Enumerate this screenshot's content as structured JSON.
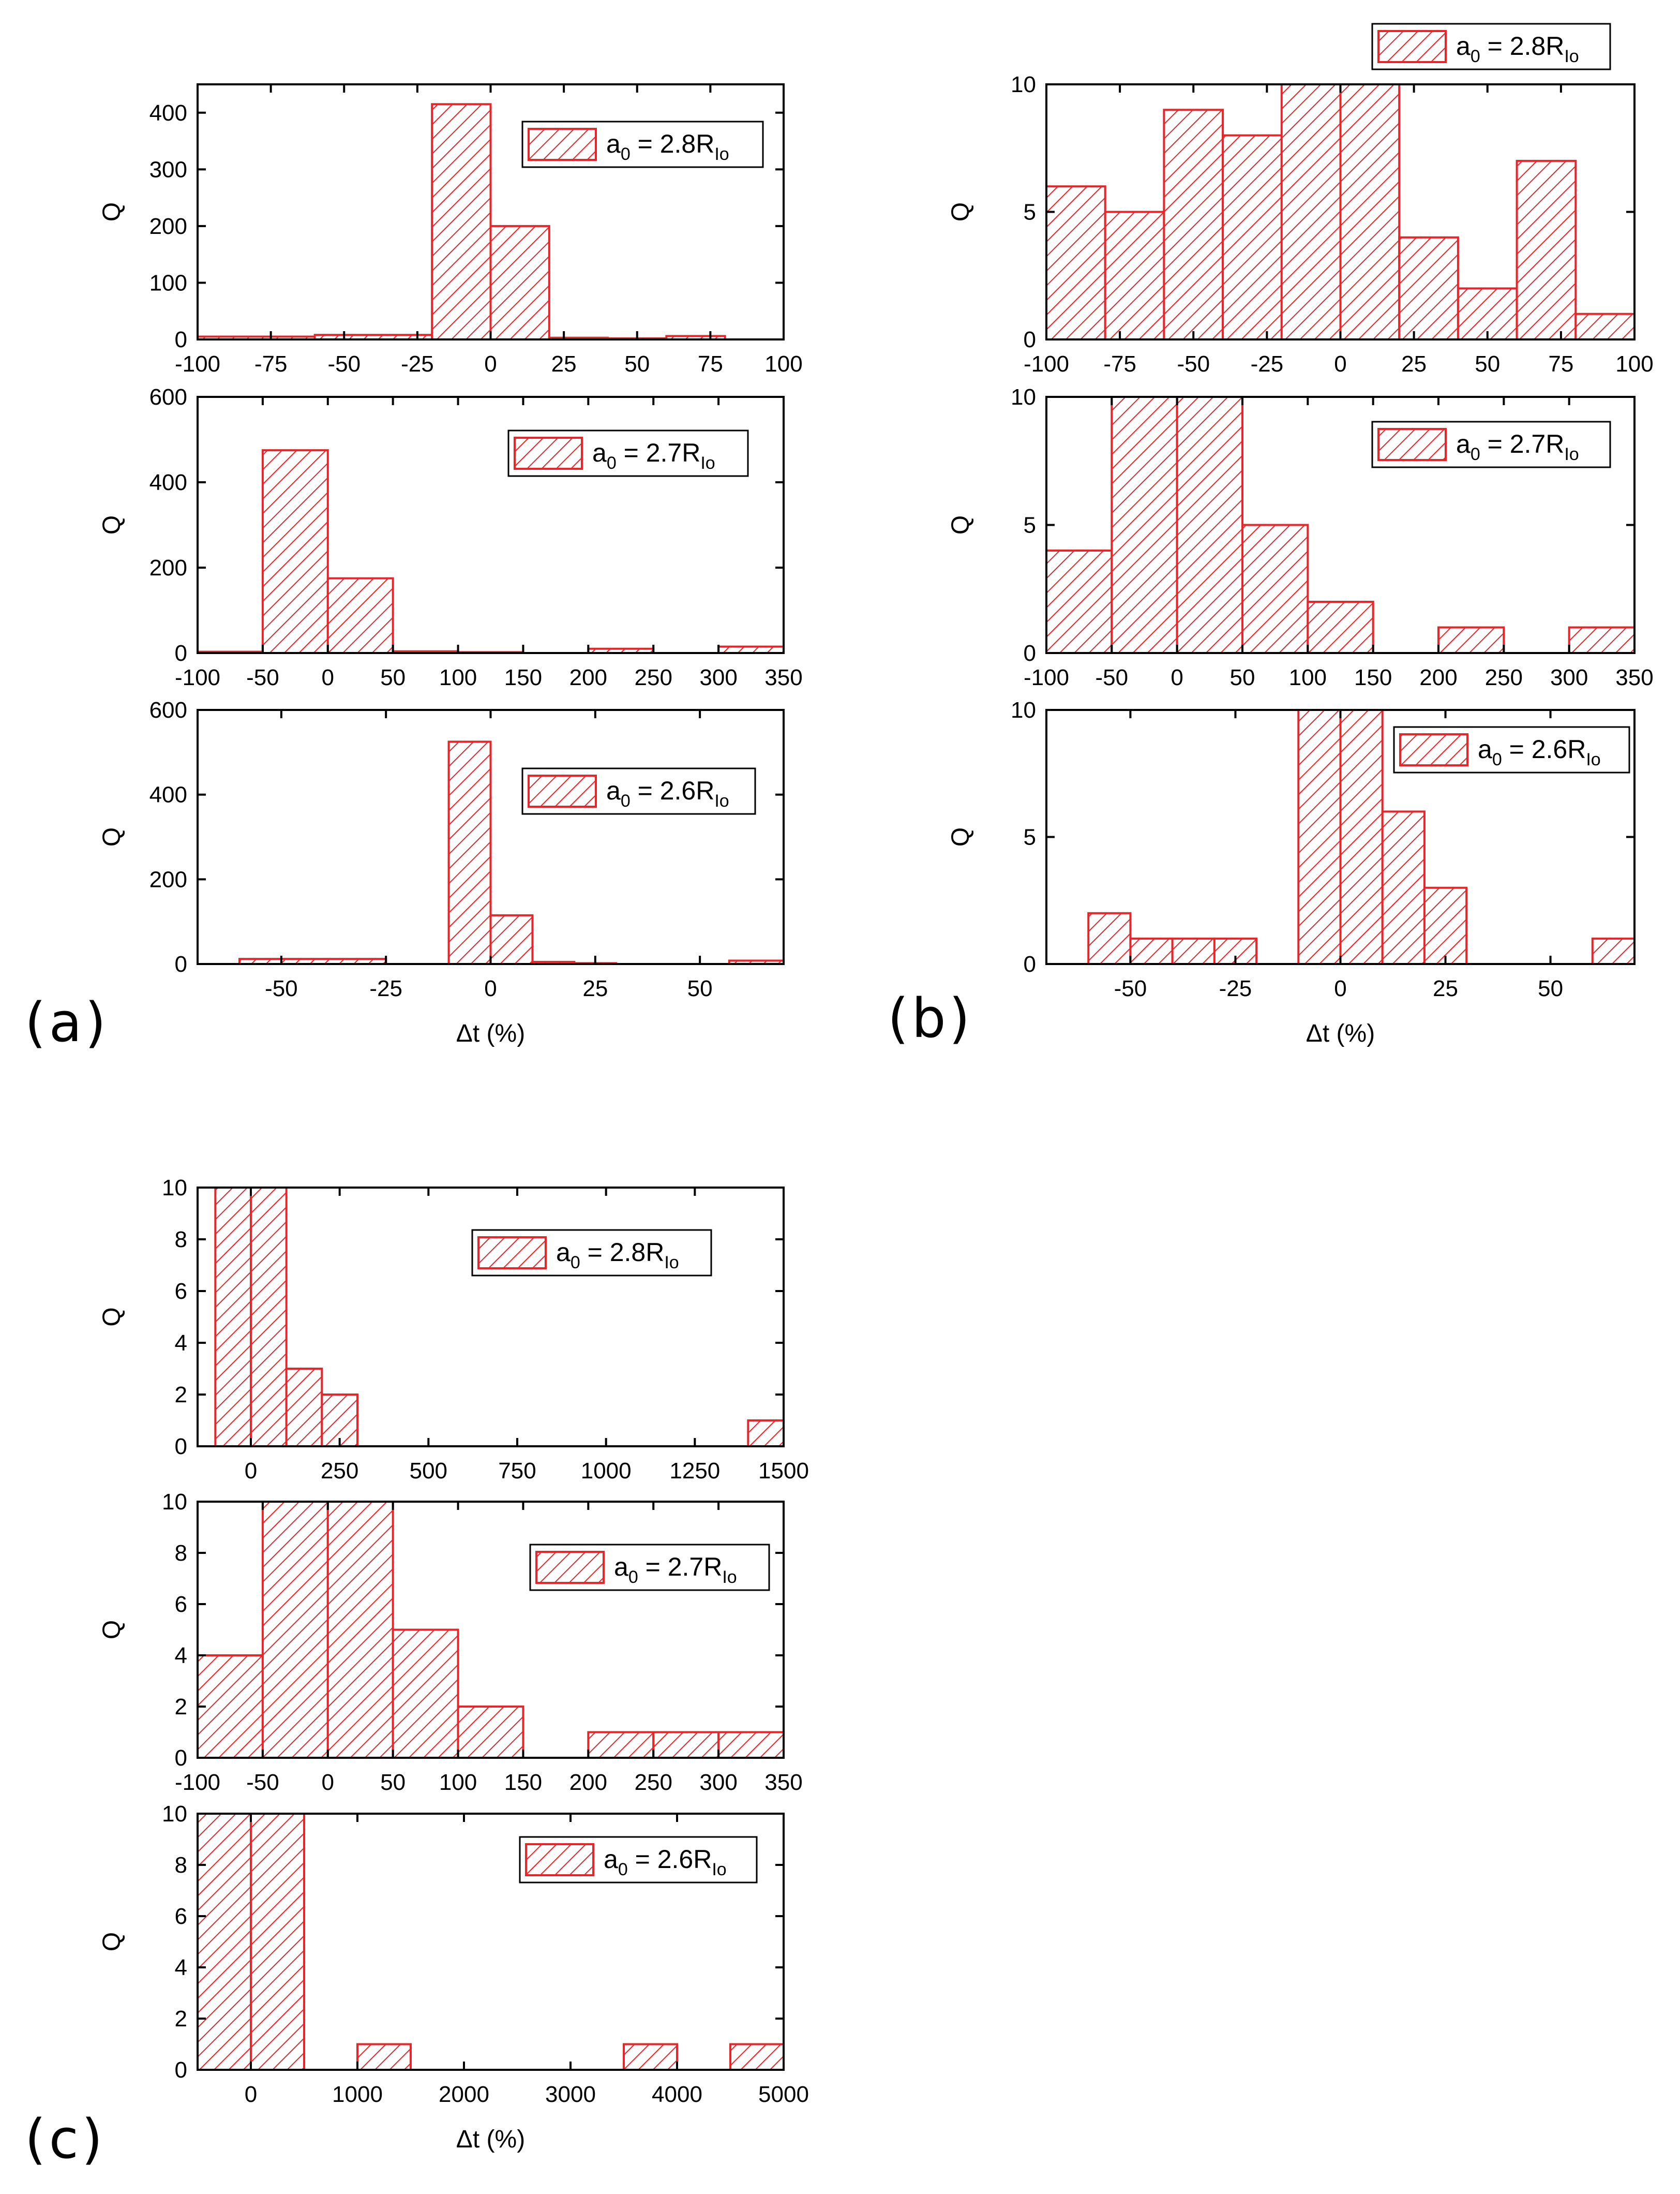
{
  "colors": {
    "bar": "#e8262a",
    "axis": "#000000",
    "background": "#ffffff"
  },
  "figure": {
    "panel_labels": [
      "(a)",
      "(b)",
      "(c)"
    ],
    "xlabel": "Δt (%)",
    "ylabel": "Q"
  },
  "chart_data": [
    {
      "panel": "a",
      "type": "bar",
      "legend": {
        "prefix": "a",
        "sub": "0",
        "mid": " = 2.8R",
        "sub2": "Io"
      },
      "xlim": [
        -100,
        100
      ],
      "ylim": [
        0,
        450
      ],
      "xticks": [
        -100,
        -75,
        -50,
        -25,
        0,
        25,
        50,
        75,
        100
      ],
      "yticks": [
        0,
        100,
        200,
        300,
        400
      ],
      "bins": [
        [
          -100,
          -60,
          5
        ],
        [
          -60,
          -20,
          8
        ],
        [
          -20,
          0,
          415
        ],
        [
          0,
          20,
          200
        ],
        [
          20,
          40,
          3
        ],
        [
          40,
          60,
          2
        ],
        [
          60,
          80,
          6
        ]
      ]
    },
    {
      "panel": "a",
      "type": "bar",
      "legend": {
        "prefix": "a",
        "sub": "0",
        "mid": " = 2.7R",
        "sub2": "Io"
      },
      "xlim": [
        -100,
        350
      ],
      "ylim": [
        0,
        600
      ],
      "xticks": [
        -100,
        -50,
        0,
        50,
        100,
        150,
        200,
        250,
        300,
        350
      ],
      "yticks": [
        0,
        200,
        400,
        600
      ],
      "bins": [
        [
          -100,
          -50,
          3
        ],
        [
          -50,
          0,
          475
        ],
        [
          0,
          50,
          175
        ],
        [
          50,
          100,
          4
        ],
        [
          100,
          150,
          2
        ],
        [
          200,
          250,
          10
        ],
        [
          300,
          350,
          15
        ]
      ]
    },
    {
      "panel": "a",
      "type": "bar",
      "legend": {
        "prefix": "a",
        "sub": "0",
        "mid": " = 2.6R",
        "sub2": "Io"
      },
      "xlabel": "Δt (%)",
      "xlim": [
        -70,
        70
      ],
      "ylim": [
        0,
        600
      ],
      "xticks": [
        -50,
        -25,
        0,
        25,
        50
      ],
      "yticks": [
        0,
        200,
        400,
        600
      ],
      "bins": [
        [
          -60,
          -25,
          12
        ],
        [
          -10,
          0,
          525
        ],
        [
          0,
          10,
          115
        ],
        [
          10,
          20,
          5
        ],
        [
          20,
          30,
          2
        ],
        [
          57,
          70,
          8
        ]
      ]
    },
    {
      "panel": "b",
      "type": "bar",
      "legend": {
        "prefix": "a",
        "sub": "0",
        "mid": " = 2.8R",
        "sub2": "Io"
      },
      "xlim": [
        -100,
        100
      ],
      "ylim": [
        0,
        10
      ],
      "xticks": [
        -100,
        -75,
        -50,
        -25,
        0,
        25,
        50,
        75,
        100
      ],
      "yticks": [
        0,
        5,
        10
      ],
      "bins": [
        [
          -100,
          -80,
          6
        ],
        [
          -80,
          -60,
          5
        ],
        [
          -60,
          -40,
          9
        ],
        [
          -40,
          -20,
          8
        ],
        [
          -20,
          0,
          10
        ],
        [
          0,
          20,
          10
        ],
        [
          20,
          40,
          4
        ],
        [
          40,
          60,
          2
        ],
        [
          60,
          80,
          7
        ],
        [
          80,
          100,
          1
        ]
      ]
    },
    {
      "panel": "b",
      "type": "bar",
      "legend": {
        "prefix": "a",
        "sub": "0",
        "mid": " = 2.7R",
        "sub2": "Io"
      },
      "xlim": [
        -100,
        350
      ],
      "ylim": [
        0,
        10
      ],
      "xticks": [
        -100,
        -50,
        0,
        50,
        100,
        150,
        200,
        250,
        300,
        350
      ],
      "yticks": [
        0,
        5,
        10
      ],
      "bins": [
        [
          -100,
          -50,
          4
        ],
        [
          -50,
          0,
          10
        ],
        [
          0,
          50,
          10
        ],
        [
          50,
          100,
          5
        ],
        [
          100,
          150,
          2
        ],
        [
          200,
          250,
          1
        ],
        [
          300,
          350,
          1
        ]
      ]
    },
    {
      "panel": "b",
      "type": "bar",
      "legend": {
        "prefix": "a",
        "sub": "0",
        "mid": " = 2.6R",
        "sub2": "Io"
      },
      "xlabel": "Δt (%)",
      "xlim": [
        -70,
        70
      ],
      "ylim": [
        0,
        10
      ],
      "xticks": [
        -50,
        -25,
        0,
        25,
        50
      ],
      "yticks": [
        0,
        5,
        10
      ],
      "bins": [
        [
          -60,
          -50,
          2
        ],
        [
          -50,
          -40,
          1
        ],
        [
          -40,
          -30,
          1
        ],
        [
          -30,
          -20,
          1
        ],
        [
          -10,
          0,
          10
        ],
        [
          0,
          10,
          10
        ],
        [
          10,
          20,
          6
        ],
        [
          20,
          30,
          3
        ],
        [
          60,
          70,
          1
        ]
      ]
    },
    {
      "panel": "c",
      "type": "bar",
      "legend": {
        "prefix": "a",
        "sub": "0",
        "mid": " = 2.8R",
        "sub2": "Io"
      },
      "xlim": [
        -150,
        1500
      ],
      "ylim": [
        0,
        10
      ],
      "xticks": [
        0,
        250,
        500,
        750,
        1000,
        1250,
        1500
      ],
      "yticks": [
        0,
        2,
        4,
        6,
        8,
        10
      ],
      "bins": [
        [
          -100,
          0,
          10
        ],
        [
          0,
          100,
          10
        ],
        [
          100,
          200,
          3
        ],
        [
          200,
          300,
          2
        ],
        [
          1400,
          1500,
          1
        ]
      ]
    },
    {
      "panel": "c",
      "type": "bar",
      "legend": {
        "prefix": "a",
        "sub": "0",
        "mid": " = 2.7R",
        "sub2": "Io"
      },
      "xlim": [
        -100,
        350
      ],
      "ylim": [
        0,
        10
      ],
      "xticks": [
        -100,
        -50,
        0,
        50,
        100,
        150,
        200,
        250,
        300,
        350
      ],
      "yticks": [
        0,
        2,
        4,
        6,
        8,
        10
      ],
      "bins": [
        [
          -100,
          -50,
          4
        ],
        [
          -50,
          0,
          10
        ],
        [
          0,
          50,
          10
        ],
        [
          50,
          100,
          5
        ],
        [
          100,
          150,
          2
        ],
        [
          200,
          250,
          1
        ],
        [
          250,
          300,
          1
        ],
        [
          300,
          350,
          1
        ]
      ]
    },
    {
      "panel": "c",
      "type": "bar",
      "legend": {
        "prefix": "a",
        "sub": "0",
        "mid": " = 2.6R",
        "sub2": "Io"
      },
      "xlabel": "Δt (%)",
      "xlim": [
        -500,
        5000
      ],
      "ylim": [
        0,
        10
      ],
      "xticks": [
        0,
        1000,
        2000,
        3000,
        4000,
        5000
      ],
      "yticks": [
        0,
        2,
        4,
        6,
        8,
        10
      ],
      "bins": [
        [
          -500,
          0,
          10
        ],
        [
          0,
          500,
          10
        ],
        [
          1000,
          1500,
          1
        ],
        [
          3500,
          4000,
          1
        ],
        [
          4500,
          5000,
          1
        ]
      ]
    }
  ]
}
